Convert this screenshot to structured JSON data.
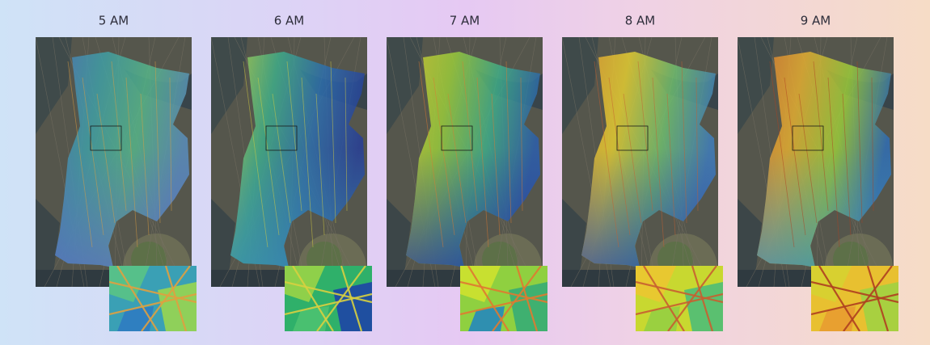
{
  "panels": [
    {
      "title": "5 AM"
    },
    {
      "title": "6 AM"
    },
    {
      "title": "7 AM"
    },
    {
      "title": "8 AM"
    },
    {
      "title": "9 AM"
    }
  ]
}
